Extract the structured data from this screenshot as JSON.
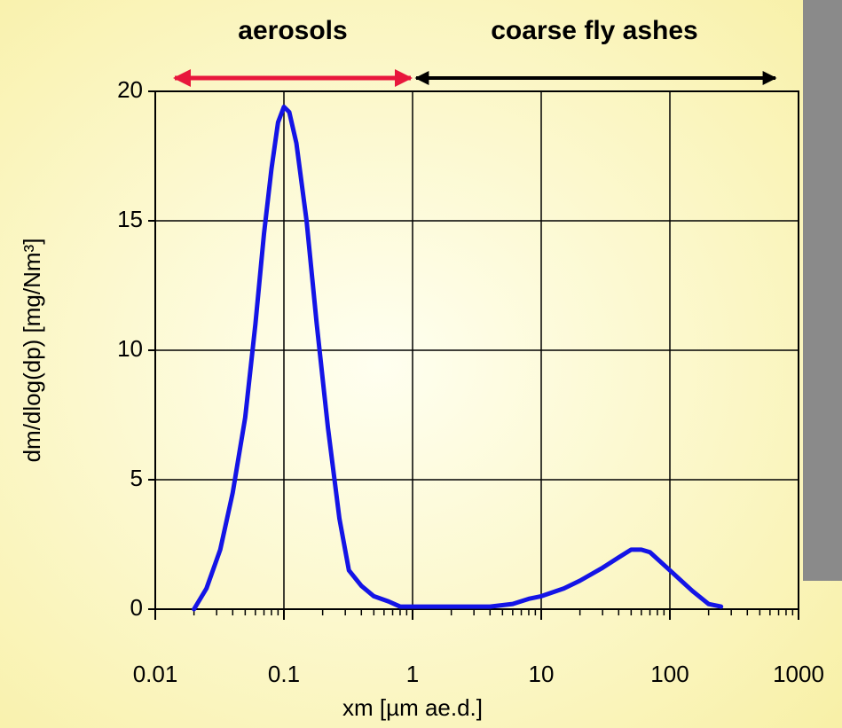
{
  "chart_data": {
    "type": "line",
    "xlog": true,
    "grid": true,
    "annotations": [
      {
        "text": "aerosols",
        "color": "#e8173c"
      },
      {
        "text": "coarse fly ashes",
        "color": "#000000"
      }
    ],
    "xlabel": "xm [µm ae.d.]",
    "ylabel": "dm/dlog(dp) [mg/Nm³]",
    "xlim": [
      0.01,
      1000
    ],
    "xticks": [
      0.01,
      0.1,
      1,
      10,
      100,
      1000
    ],
    "ylim": [
      0,
      20
    ],
    "yticks": [
      0,
      5,
      10,
      15,
      20
    ],
    "x": [
      0.02,
      0.025,
      0.032,
      0.04,
      0.05,
      0.06,
      0.07,
      0.08,
      0.09,
      0.1,
      0.11,
      0.125,
      0.15,
      0.18,
      0.22,
      0.27,
      0.32,
      0.4,
      0.5,
      0.65,
      0.8,
      1,
      2,
      4,
      6,
      8,
      10,
      15,
      20,
      30,
      40,
      50,
      60,
      70,
      100,
      150,
      200,
      250
    ],
    "series": [
      {
        "color": "#1414e6",
        "values": [
          0,
          0.8,
          2.3,
          4.5,
          7.4,
          11,
          14.5,
          17,
          18.8,
          19.4,
          19.2,
          18,
          15,
          11,
          7,
          3.5,
          1.5,
          0.9,
          0.5,
          0.3,
          0.1,
          0.1,
          0.1,
          0.1,
          0.2,
          0.4,
          0.5,
          0.8,
          1.1,
          1.6,
          2.0,
          2.3,
          2.3,
          2.2,
          1.5,
          0.7,
          0.2,
          0.1
        ]
      }
    ]
  }
}
